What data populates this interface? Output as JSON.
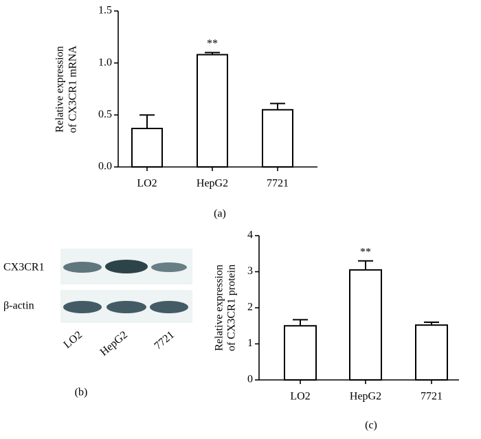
{
  "chart_data": [
    {
      "type": "bar",
      "caption": "(a)",
      "y_label": [
        "Relative expression",
        "of CX3CR1 mRNA"
      ],
      "categories": [
        "LO2",
        "HepG2",
        "7721"
      ],
      "values": [
        0.37,
        1.08,
        0.55
      ],
      "errors": [
        0.13,
        0.02,
        0.06
      ],
      "annotations": [
        null,
        "**",
        null
      ],
      "color": "#ffffff",
      "ylim": [
        0,
        1.5
      ],
      "yticks": [
        {
          "value": 0,
          "label": "0.0"
        },
        {
          "value": 0.5,
          "label": "0.5"
        },
        {
          "value": 1,
          "label": "1.0"
        },
        {
          "value": 1.5,
          "label": "1.5"
        }
      ]
    },
    {
      "type": "bar",
      "caption": "(c)",
      "y_label": [
        "Relative expression",
        "of CX3CR1 protein"
      ],
      "categories": [
        "LO2",
        "HepG2",
        "7721"
      ],
      "values": [
        1.5,
        3.05,
        1.52
      ],
      "errors": [
        0.17,
        0.25,
        0.08
      ],
      "annotations": [
        null,
        "**",
        null
      ],
      "color": "#ffffff",
      "ylim": [
        0,
        4
      ],
      "yticks": [
        0,
        1,
        2,
        3,
        4
      ]
    }
  ],
  "blot": {
    "rows": [
      "CX3CR1",
      "β-actin"
    ],
    "lanes": [
      "LO2",
      "HepG2",
      "7721"
    ],
    "caption": "(b)"
  }
}
